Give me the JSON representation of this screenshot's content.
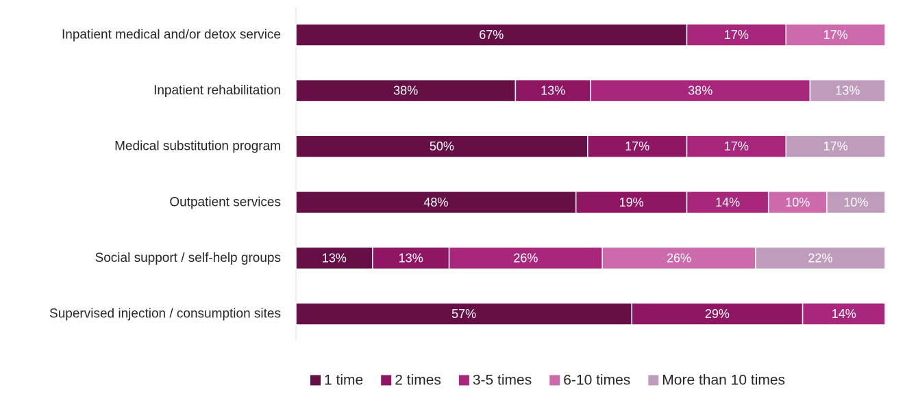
{
  "chart_data": {
    "type": "bar",
    "orientation": "horizontal",
    "stacked": true,
    "title": "",
    "xlabel": "",
    "ylabel": "",
    "xlim": [
      0,
      100
    ],
    "grid": false,
    "legend_position": "bottom",
    "categories": [
      "Inpatient medical and/or detox service",
      "Inpatient rehabilitation",
      "Medical substitution program ",
      "Outpatient services",
      "Social support / self-help groups ",
      "Supervised injection / consumption  sites"
    ],
    "series": [
      {
        "name": "1 time",
        "color": "#660f47",
        "values": [
          67,
          38,
          50,
          48,
          13,
          57
        ]
      },
      {
        "name": "2 times",
        "color": "#8e1663",
        "values": [
          0,
          13,
          17,
          19,
          13,
          29
        ]
      },
      {
        "name": "3-5 times",
        "color": "#a8277c",
        "values": [
          17,
          38,
          17,
          14,
          26,
          14
        ]
      },
      {
        "name": "6-10 times",
        "color": "#cc6aab",
        "values": [
          17,
          0,
          0,
          10,
          26,
          0
        ]
      },
      {
        "name": "More than 10 times",
        "color": "#c09cbc",
        "values": [
          0,
          13,
          17,
          10,
          22,
          0
        ]
      }
    ],
    "value_labels": [
      [
        "67%",
        "",
        "17%",
        "17%",
        ""
      ],
      [
        "38%",
        "13%",
        "38%",
        "",
        "13%"
      ],
      [
        "50%",
        "17%",
        "17%",
        "",
        "17%"
      ],
      [
        "48%",
        "19%",
        "14%",
        "10%",
        "10%"
      ],
      [
        "13%",
        "13%",
        "26%",
        "26%",
        "22%"
      ],
      [
        "57%",
        "29%",
        "14%",
        "",
        ""
      ]
    ]
  }
}
